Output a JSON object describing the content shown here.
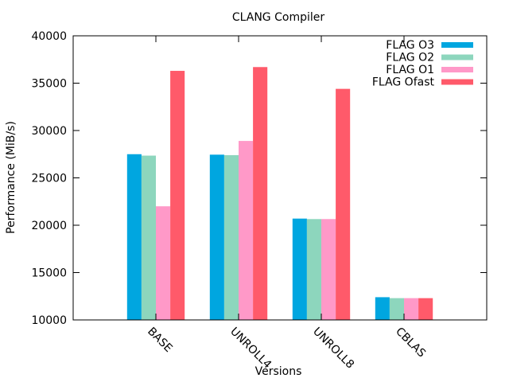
{
  "chart_data": {
    "type": "bar",
    "title": "CLANG Compiler",
    "xlabel": "Versions",
    "ylabel": "Performance (MiB/s)",
    "ylim": [
      10000,
      40000
    ],
    "yticks": [
      10000,
      15000,
      20000,
      25000,
      30000,
      35000,
      40000
    ],
    "categories": [
      "BASE",
      "UNROLL4",
      "UNROLL8",
      "CBLAS"
    ],
    "grid": false,
    "legend_position": "top-right",
    "series": [
      {
        "name": "FLAG O3",
        "color": "#00a6e0",
        "values": [
          27500,
          27450,
          20700,
          12400
        ]
      },
      {
        "name": "FLAG O2",
        "color": "#8dd6bd",
        "values": [
          27350,
          27400,
          20650,
          12300
        ]
      },
      {
        "name": "FLAG O1",
        "color": "#ff99c8",
        "values": [
          22000,
          28900,
          20650,
          12300
        ]
      },
      {
        "name": "FLAG Ofast",
        "color": "#ff5a6a",
        "values": [
          36300,
          36700,
          34400,
          12300
        ]
      }
    ]
  }
}
